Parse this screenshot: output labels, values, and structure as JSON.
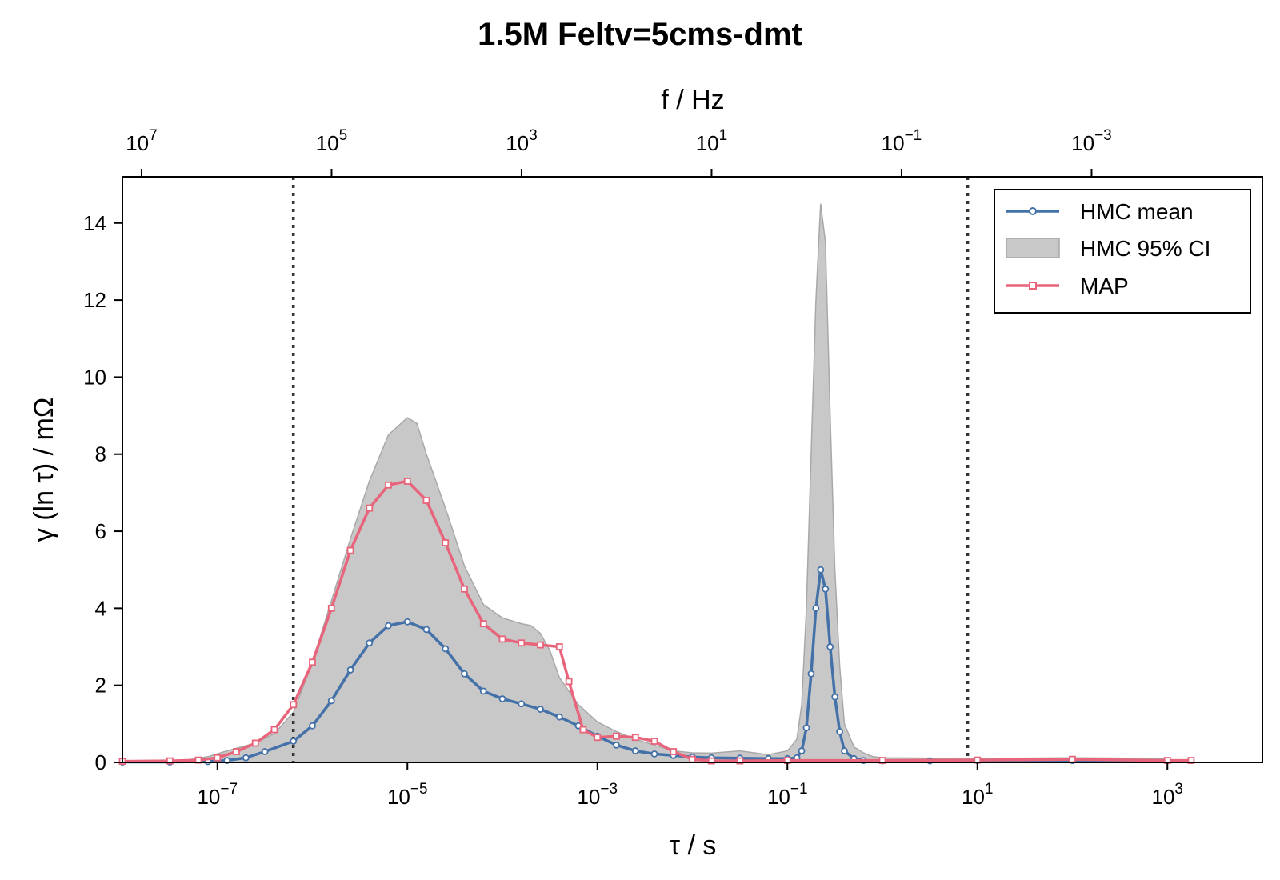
{
  "chart_data": {
    "type": "line",
    "title": "1.5M Feltv=5cms-dmt",
    "xlabel": "τ / s",
    "ylabel": "γ (ln τ) / mΩ",
    "top_xlabel": "f / Hz",
    "x_scale": "log",
    "xlim_tau_s": [
      1e-08,
      10000.0
    ],
    "ylim": [
      0,
      15.2
    ],
    "y_ticks": [
      0,
      2,
      4,
      6,
      8,
      10,
      12,
      14
    ],
    "y_tick_labels": [
      "0",
      "2",
      "4",
      "6",
      "8",
      "10",
      "12",
      "14"
    ],
    "x_ticks_tau_s": [
      1e-07,
      1e-05,
      0.001,
      0.1,
      10.0,
      1000.0
    ],
    "x_tick_labels": [
      {
        "base": "10",
        "exp": "−7"
      },
      {
        "base": "10",
        "exp": "−5"
      },
      {
        "base": "10",
        "exp": "−3"
      },
      {
        "base": "10",
        "exp": "−1"
      },
      {
        "base": "10",
        "exp": "1"
      },
      {
        "base": "10",
        "exp": "3"
      }
    ],
    "top_ticks_f_hz": [
      10000000.0,
      100000.0,
      1000.0,
      10.0,
      0.1,
      0.001
    ],
    "top_tick_labels": [
      {
        "base": "10",
        "exp": "7"
      },
      {
        "base": "10",
        "exp": "5"
      },
      {
        "base": "10",
        "exp": "3"
      },
      {
        "base": "10",
        "exp": "1"
      },
      {
        "base": "10",
        "exp": "−1"
      },
      {
        "base": "10",
        "exp": "−3"
      }
    ],
    "vlines_tau_s": [
      6.3e-07,
      7.9
    ],
    "legend_position": "top-right",
    "colors": {
      "hmc_mean": "#4472a8",
      "ci_fill": "#c8c8c8",
      "ci_edge": "#a8a8a8",
      "map": "#e8647a",
      "vline": "#333333"
    },
    "series": [
      {
        "name": "HMC mean",
        "x_log10_tau": [
          -8.0,
          -7.5,
          -7.1,
          -6.9,
          -6.7,
          -6.5,
          -6.2,
          -6.0,
          -5.8,
          -5.6,
          -5.4,
          -5.2,
          -5.0,
          -4.8,
          -4.6,
          -4.4,
          -4.2,
          -4.0,
          -3.8,
          -3.6,
          -3.4,
          -3.2,
          -3.0,
          -2.8,
          -2.6,
          -2.4,
          -2.2,
          -2.0,
          -1.8,
          -1.5,
          -1.2,
          -1.0,
          -0.9,
          -0.85,
          -0.8,
          -0.75,
          -0.7,
          -0.65,
          -0.6,
          -0.55,
          -0.5,
          -0.45,
          -0.4,
          -0.3,
          -0.2,
          0.0,
          0.5,
          1.0,
          2.0,
          3.0
        ],
        "values": [
          0.01,
          0.01,
          0.02,
          0.05,
          0.12,
          0.28,
          0.55,
          0.95,
          1.6,
          2.4,
          3.1,
          3.55,
          3.65,
          3.45,
          2.95,
          2.3,
          1.85,
          1.65,
          1.52,
          1.38,
          1.18,
          0.95,
          0.68,
          0.45,
          0.3,
          0.22,
          0.18,
          0.14,
          0.12,
          0.11,
          0.1,
          0.1,
          0.12,
          0.3,
          0.9,
          2.3,
          4.0,
          5.0,
          4.5,
          3.0,
          1.7,
          0.8,
          0.3,
          0.1,
          0.05,
          0.04,
          0.04,
          0.05,
          0.05,
          0.05
        ]
      },
      {
        "name": "HMC 95% CI",
        "x_log10_tau": [
          -8.0,
          -7.4,
          -7.1,
          -6.9,
          -6.6,
          -6.4,
          -6.2,
          -6.0,
          -5.8,
          -5.6,
          -5.4,
          -5.2,
          -5.0,
          -4.9,
          -4.8,
          -4.6,
          -4.4,
          -4.2,
          -4.0,
          -3.8,
          -3.7,
          -3.6,
          -3.5,
          -3.4,
          -3.2,
          -3.0,
          -2.8,
          -2.6,
          -2.4,
          -2.2,
          -2.0,
          -1.8,
          -1.5,
          -1.2,
          -1.0,
          -0.9,
          -0.85,
          -0.8,
          -0.75,
          -0.7,
          -0.67,
          -0.65,
          -0.6,
          -0.55,
          -0.5,
          -0.45,
          -0.4,
          -0.3,
          -0.2,
          -0.1,
          0.0,
          1.0,
          2.0,
          3.0
        ],
        "upper": [
          0.02,
          0.03,
          0.15,
          0.3,
          0.5,
          0.75,
          1.3,
          2.6,
          4.2,
          5.8,
          7.3,
          8.5,
          8.95,
          8.8,
          8.0,
          6.6,
          5.1,
          4.1,
          3.75,
          3.6,
          3.55,
          3.35,
          2.9,
          2.2,
          1.5,
          1.05,
          0.8,
          0.6,
          0.45,
          0.3,
          0.25,
          0.24,
          0.3,
          0.2,
          0.3,
          0.6,
          1.5,
          4.0,
          8.0,
          12.0,
          13.5,
          14.5,
          13.5,
          9.0,
          5.0,
          2.5,
          1.0,
          0.4,
          0.25,
          0.15,
          0.12,
          0.1,
          0.12,
          0.1
        ],
        "lower": [
          0,
          0,
          0,
          0,
          0,
          0,
          0,
          0,
          0,
          0,
          0,
          0,
          0,
          0,
          0,
          0,
          0,
          0,
          0,
          0,
          0,
          0,
          0,
          0,
          0,
          0,
          0,
          0,
          0,
          0,
          0,
          0,
          0,
          0,
          0,
          0,
          0,
          0,
          0,
          0,
          0,
          0,
          0,
          0,
          0,
          0,
          0,
          0,
          0,
          0,
          0,
          0,
          0,
          0
        ]
      },
      {
        "name": "MAP",
        "x_log10_tau": [
          -8.0,
          -7.5,
          -7.2,
          -7.0,
          -6.8,
          -6.6,
          -6.4,
          -6.2,
          -6.0,
          -5.8,
          -5.6,
          -5.4,
          -5.2,
          -5.0,
          -4.8,
          -4.6,
          -4.4,
          -4.2,
          -4.0,
          -3.8,
          -3.6,
          -3.4,
          -3.3,
          -3.15,
          -3.0,
          -2.8,
          -2.6,
          -2.4,
          -2.2,
          -2.0,
          -1.8,
          -1.5,
          -1.0,
          0.0,
          1.0,
          2.0,
          3.0,
          3.25
        ],
        "values": [
          0.03,
          0.04,
          0.06,
          0.12,
          0.28,
          0.5,
          0.85,
          1.5,
          2.6,
          4.0,
          5.5,
          6.6,
          7.2,
          7.3,
          6.8,
          5.7,
          4.5,
          3.6,
          3.2,
          3.1,
          3.05,
          3.0,
          2.1,
          0.85,
          0.65,
          0.68,
          0.65,
          0.55,
          0.28,
          0.08,
          0.04,
          0.04,
          0.05,
          0.05,
          0.06,
          0.08,
          0.05,
          0.05
        ]
      }
    ]
  }
}
